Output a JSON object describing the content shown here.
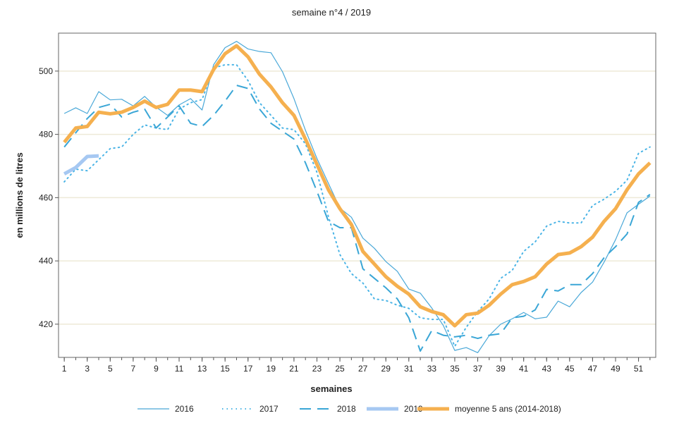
{
  "chart_data": {
    "type": "line",
    "title": "semaine n°4 / 2019",
    "xlabel": "semaines",
    "ylabel": "en millions de litres",
    "xlim": [
      0.5,
      52.5
    ],
    "ylim": [
      409.5,
      512
    ],
    "xticks": [
      1,
      3,
      5,
      7,
      9,
      11,
      13,
      15,
      17,
      19,
      21,
      23,
      25,
      27,
      29,
      31,
      33,
      35,
      37,
      39,
      41,
      43,
      45,
      47,
      49,
      51
    ],
    "yticks": [
      420,
      440,
      460,
      480,
      500
    ],
    "grid": "horizontal",
    "legend_position": "bottom",
    "series": [
      {
        "name": "2016",
        "style": "solid-thin",
        "color": "#4aa8d8",
        "start_week": 1,
        "values": [
          486.6,
          488.4,
          486.6,
          493.5,
          490.9,
          491.1,
          489,
          492,
          488.6,
          486,
          489.3,
          491.3,
          487.7,
          502,
          507.4,
          509.4,
          507,
          506.2,
          505.8,
          499.8,
          491.3,
          481.3,
          472.4,
          464.5,
          456.7,
          453.8,
          447.2,
          444,
          439.8,
          436.7,
          431.1,
          429.8,
          425.1,
          419.6,
          411.7,
          412.6,
          411,
          416.4,
          420,
          421.7,
          423.7,
          421.7,
          422.2,
          427.3,
          425.5,
          430,
          433.3,
          439.6,
          446.7,
          455.2,
          457.9,
          460.5
        ]
      },
      {
        "name": "2017",
        "style": "dotted",
        "color": "#4ab4e6",
        "start_week": 1,
        "values": [
          465,
          469,
          468.5,
          472,
          475.5,
          476,
          480,
          483,
          482,
          481.5,
          488,
          490,
          491,
          501,
          502,
          502,
          497,
          490,
          486,
          482,
          481.5,
          477,
          468,
          454,
          442,
          436,
          433,
          428,
          427.5,
          426,
          425,
          422,
          421.5,
          421.5,
          413,
          419,
          424,
          428,
          434.5,
          437,
          443,
          446,
          451,
          452.5,
          452,
          452,
          457.5,
          459.5,
          462,
          465.5,
          474,
          476
        ]
      },
      {
        "name": "2018",
        "style": "dashed",
        "color": "#3aa6d6",
        "start_week": 1,
        "values": [
          476,
          480.5,
          485,
          488.5,
          489.5,
          485.5,
          487,
          488,
          482,
          485.5,
          489,
          483.5,
          482.5,
          486,
          490.5,
          495.5,
          494.5,
          488,
          483.5,
          481,
          478.5,
          471,
          462,
          452.5,
          450.5,
          450.5,
          437.5,
          434.5,
          431.5,
          428,
          422,
          411.5,
          418,
          416.5,
          416,
          416.5,
          415.5,
          416.5,
          417,
          422,
          422.5,
          424.5,
          431,
          430.5,
          432.5,
          432.5,
          436,
          441,
          444.5,
          448.5,
          458.5,
          461
        ]
      },
      {
        "name": "2019",
        "style": "solid-thick",
        "color": "#a6c8f2",
        "start_week": 1,
        "values": [
          467.5,
          469.5,
          473,
          473.2
        ]
      },
      {
        "name": "moyenne 5 ans (2014-2018)",
        "style": "solid-thick",
        "color": "#f5b04f",
        "start_week": 1,
        "values": [
          477.5,
          482,
          482.5,
          487,
          486.5,
          487,
          488.5,
          490.5,
          488.5,
          489.5,
          494,
          494,
          493.5,
          500.5,
          505.5,
          508,
          504.5,
          499,
          495,
          490,
          486,
          478.5,
          470.5,
          462.5,
          456.5,
          451.5,
          443,
          439,
          435,
          432,
          429.5,
          425.5,
          424,
          423,
          419.5,
          423,
          423.5,
          426,
          429.5,
          432.5,
          433.5,
          435,
          439,
          442,
          442.5,
          444.5,
          447.5,
          452.5,
          456.5,
          462.5,
          467.5,
          471
        ]
      }
    ]
  }
}
